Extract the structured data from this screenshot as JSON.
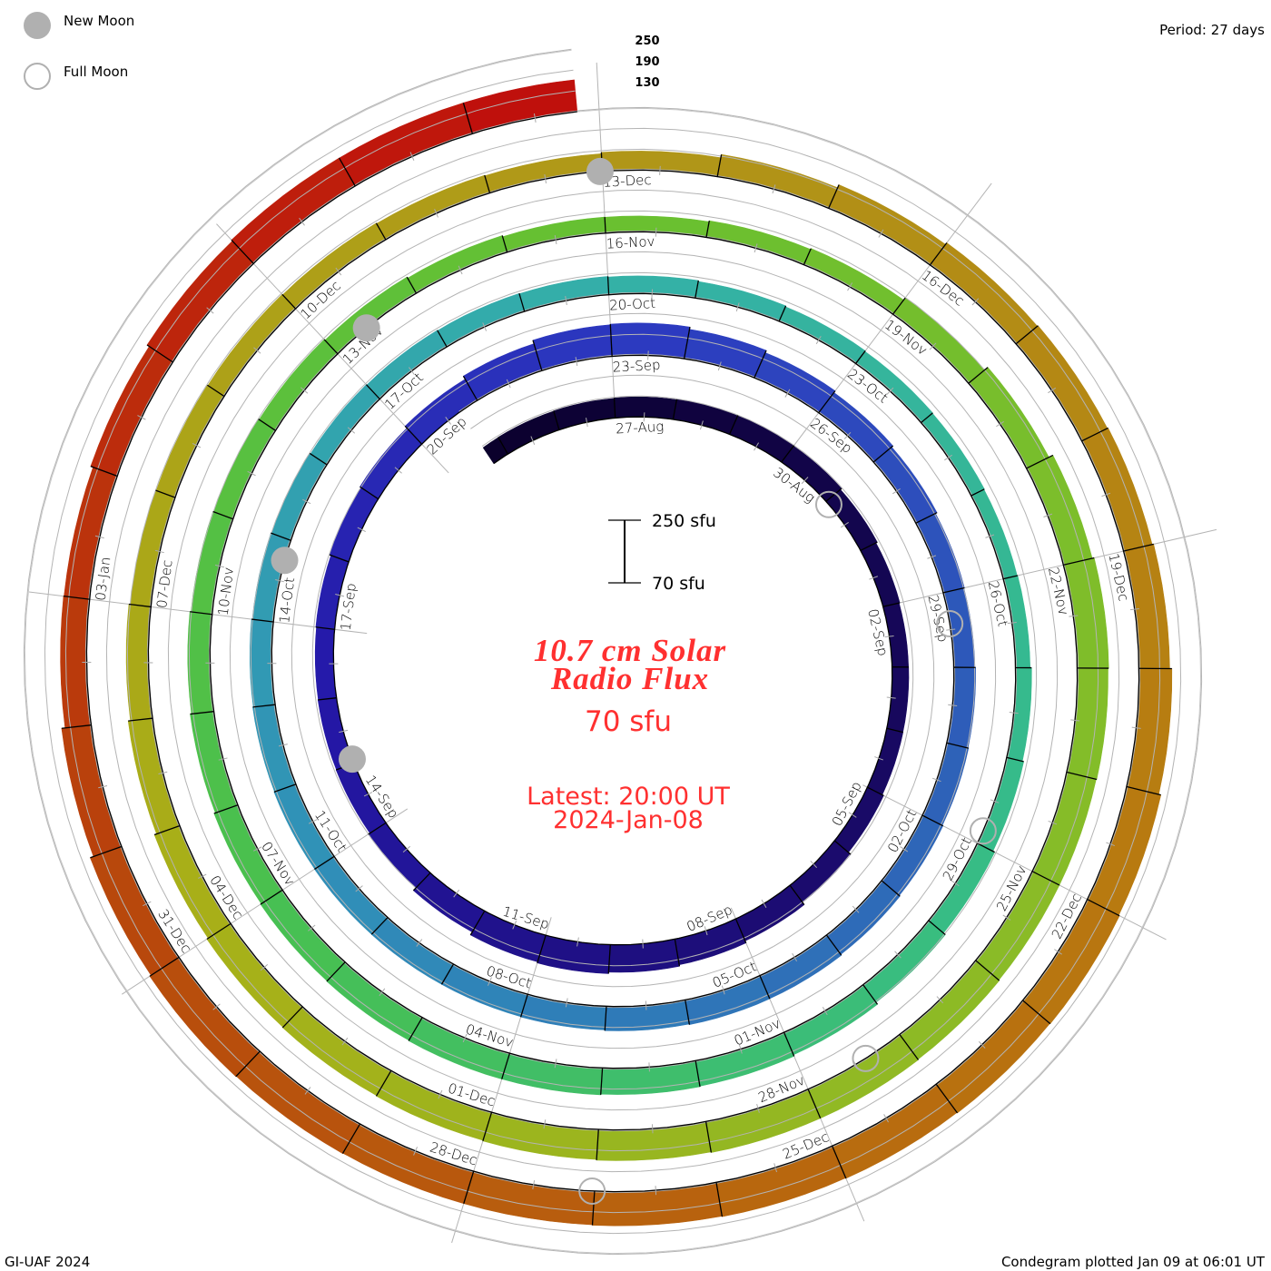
{
  "legend": {
    "new_moon": "New Moon",
    "full_moon": "Full Moon"
  },
  "period": "Period: 27 days",
  "footer": {
    "left": "GI-UAF 2024",
    "right": "Condegram plotted Jan 09 at 06:01 UT"
  },
  "ref_levels": [
    "250",
    "190",
    "130"
  ],
  "scale_bar": {
    "top": "250 sfu",
    "bottom": "70 sfu"
  },
  "center": {
    "title_line1": "10.7 cm Solar",
    "title_line2": "Radio Flux",
    "baseline": "70 sfu",
    "latest_line1": "Latest: 20:00 UT",
    "latest_line2": "2024-Jan-08"
  },
  "colors": {
    "text_red": "#ff3030",
    "moon": "#b0b0b0",
    "grid": "#b4b4b4"
  },
  "chart_data": {
    "type": "bar",
    "title": "10.7 cm Solar Radio Flux",
    "ylabel": "sfu",
    "period_days": 27,
    "baseline_sfu": 70,
    "scale_sfu": [
      70,
      250
    ],
    "reference_levels_sfu": [
      130,
      190,
      250
    ],
    "label_interval_days": 3,
    "start": {
      "day": -2.3,
      "value": 125
    },
    "end_day": 134.83,
    "tail": {
      "day": 132,
      "value": 162
    },
    "categories": [
      "27-Aug",
      "30-Aug",
      "02-Sep",
      "05-Sep",
      "08-Sep",
      "11-Sep",
      "14-Sep",
      "17-Sep",
      "20-Sep",
      "23-Sep",
      "26-Sep",
      "29-Sep",
      "02-Oct",
      "05-Oct",
      "08-Oct",
      "11-Oct",
      "14-Oct",
      "17-Oct",
      "20-Oct",
      "23-Oct",
      "26-Oct",
      "29-Oct",
      "01-Nov",
      "04-Nov",
      "07-Nov",
      "10-Nov",
      "13-Nov",
      "16-Nov",
      "19-Nov",
      "22-Nov",
      "25-Nov",
      "28-Nov",
      "01-Dec",
      "04-Dec",
      "07-Dec",
      "10-Dec",
      "13-Dec",
      "16-Dec",
      "19-Dec",
      "22-Dec",
      "25-Dec",
      "28-Dec",
      "31-Dec",
      "03-Jan"
    ],
    "values": [
      127,
      130,
      117,
      118,
      143,
      155,
      125,
      122,
      135,
      166,
      145,
      130,
      135,
      143,
      137,
      137,
      132,
      125,
      122,
      114,
      110,
      122,
      143,
      148,
      144,
      132,
      125,
      114,
      122,
      161,
      156,
      161,
      155,
      150,
      130,
      125,
      120,
      148,
      155,
      174,
      170,
      166,
      170,
      140
    ],
    "moon_phases": [
      {
        "type": "full",
        "day": 4.07
      },
      {
        "type": "new",
        "day": 19.07
      },
      {
        "type": "full",
        "day": 33.42
      },
      {
        "type": "new",
        "day": 48.75
      },
      {
        "type": "full",
        "day": 62.85
      },
      {
        "type": "new",
        "day": 78.39
      },
      {
        "type": "full",
        "day": 92.39
      },
      {
        "type": "new",
        "day": 107.98
      },
      {
        "type": "full",
        "day": 122.02
      }
    ],
    "color_stops": [
      {
        "day": -3,
        "color": "#0a0028"
      },
      {
        "day": 10,
        "color": "#1a0a6a"
      },
      {
        "day": 20,
        "color": "#2418a8"
      },
      {
        "day": 27,
        "color": "#2c38c0"
      },
      {
        "day": 36,
        "color": "#2e64b8"
      },
      {
        "day": 45,
        "color": "#3090b8"
      },
      {
        "day": 54,
        "color": "#34b0a8"
      },
      {
        "day": 63,
        "color": "#36bc88"
      },
      {
        "day": 72,
        "color": "#48c050"
      },
      {
        "day": 81,
        "color": "#68c030"
      },
      {
        "day": 90,
        "color": "#88bc28"
      },
      {
        "day": 99,
        "color": "#a8b018"
      },
      {
        "day": 108,
        "color": "#b09818"
      },
      {
        "day": 117,
        "color": "#b87810"
      },
      {
        "day": 126,
        "color": "#b84c0c"
      },
      {
        "day": 135,
        "color": "#c00c0c"
      }
    ]
  }
}
